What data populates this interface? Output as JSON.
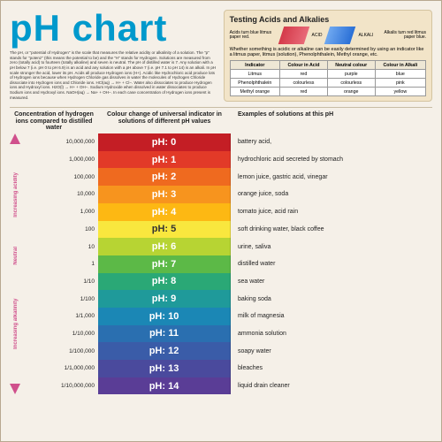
{
  "title": "pH chart",
  "title_color": "#0099cc",
  "background_color": "#f5f0e8",
  "intro_text": "The pH, or \"potential of Hydrogen\" is the scale that measures the relative acidity or alkalinity of a solution. The \"p\" stands for \"potenz\" (this means the potential to be) and the \"H\" stands for Hydrogen. Solutions are measured from zero (totally acid) to fourteen (totally alkaline) and seven is neutral. The pH of distilled water is 7. Any solution with a pH below 7 (i.e. pH 0 to pH 6.9) is an acid and any solution with a pH above 7 (i.e. pH 7.1 to pH 14) is an alkali. In pH scale stronger the acid, lower its pH. Acids all produce Hydrogen ions (H+). Acidic like Hydrochloric acid produce lots of Hydrogen ions because when Hydrogen Chloride gas dissolves in water the molecules of Hydrogen Chloride dissociate into Hydrogen ions and Chloride ions. HCl(aq) → H+ + Cl−. Water also dissociates to produce Hydrogen ions and Hydroxyl ions. H2O(l) → H+ + OH−. Sodium Hydroxide when dissolved in water dissociates to produce Sodium ions and Hydroxyl ions. NaOH(aq) → Na+ + OH−. In each case concentration of Hydrogen ions present is measured.",
  "test_box": {
    "title": "Testing Acids and Alkalies",
    "background": "#f2e4c8",
    "acid_text": "Acids turn blue litmus paper red.",
    "acid_color": "#d43a4a",
    "alkali_text": "Alkalis turn red litmus paper blue.",
    "alkali_color": "#2a6fd6",
    "desc": "Whether something is acidic or alkaline can be easily determined by using an indicator like a litmus paper, litmus (solution), Phenolphthalein, Methyl orange, etc.",
    "table": {
      "headers": [
        "Indicator",
        "Colour in Acid",
        "Neutral colour",
        "Colour in Alkali"
      ],
      "rows": [
        [
          "Litmus",
          "red",
          "purple",
          "blue"
        ],
        [
          "Phenolphthalein",
          "colourless",
          "colourless",
          "pink"
        ],
        [
          "Methyl orange",
          "red",
          "orange",
          "yellow"
        ]
      ]
    }
  },
  "column_headers": {
    "left": "Concentration of hydrogen ions compared to distilled water",
    "mid": "Colour change of universal indicator in solutions of different pH values",
    "right": "Examples of solutions at this pH"
  },
  "arrow_labels": {
    "up": "Increasing acidity",
    "mid": "Neutral",
    "down": "Increasing alkalinity",
    "color": "#d0508c"
  },
  "ph_rows": [
    {
      "ph": 0,
      "conc": "10,000,000",
      "color": "#c41e25",
      "example": "battery acid,"
    },
    {
      "ph": 1,
      "conc": "1,000,000",
      "color": "#e23a28",
      "example": "hydrochloric acid secreted by stomach"
    },
    {
      "ph": 2,
      "conc": "100,000",
      "color": "#ef6a1f",
      "example": "lemon juice, gastric acid, vinegar"
    },
    {
      "ph": 3,
      "conc": "10,000",
      "color": "#f7941e",
      "example": "orange juice, soda"
    },
    {
      "ph": 4,
      "conc": "1,000",
      "color": "#fdb813",
      "example": "tomato juice, acid rain"
    },
    {
      "ph": 5,
      "conc": "100",
      "color": "#f9e73e",
      "text": "#333",
      "example": "soft drinking water, black coffee"
    },
    {
      "ph": 6,
      "conc": "10",
      "color": "#b7d433",
      "example": "urine, saliva"
    },
    {
      "ph": 7,
      "conc": "1",
      "color": "#5cb947",
      "example": "distilled water"
    },
    {
      "ph": 8,
      "conc": "1/10",
      "color": "#2aa876",
      "example": "sea water"
    },
    {
      "ph": 9,
      "conc": "1/100",
      "color": "#1f9a9a",
      "example": "baking soda"
    },
    {
      "ph": 10,
      "conc": "1/1,000",
      "color": "#1b87b5",
      "example": "milk of magnesia"
    },
    {
      "ph": 11,
      "conc": "1/10,000",
      "color": "#2a6fb0",
      "example": "ammonia solution"
    },
    {
      "ph": 12,
      "conc": "1/100,000",
      "color": "#3a5ca8",
      "example": "soapy water"
    },
    {
      "ph": 13,
      "conc": "1/1,000,000",
      "color": "#4a4a9d",
      "example": "bleaches"
    },
    {
      "ph": 14,
      "conc": "1/10,000,000",
      "color": "#5a3d96",
      "example": "liquid drain cleaner"
    }
  ],
  "band_label_prefix": "pH: ",
  "font": {
    "title_size": 42,
    "band_size": 11,
    "example_size": 7,
    "conc_size": 6.5
  }
}
